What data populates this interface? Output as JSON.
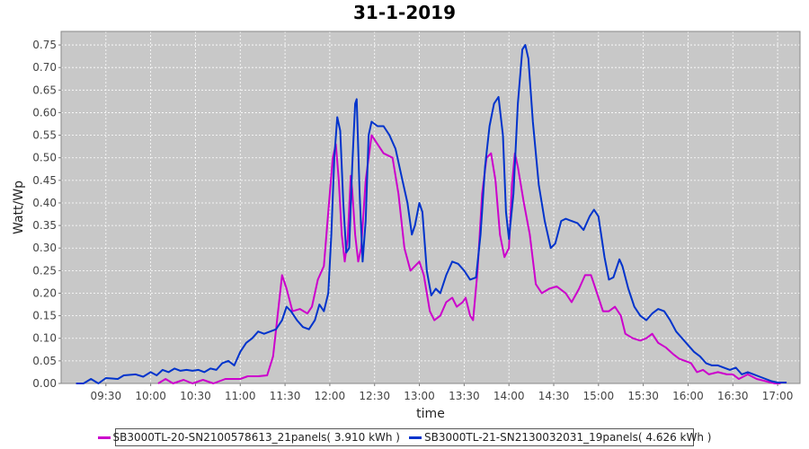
{
  "chart_data": {
    "type": "line",
    "title": "31-1-2019",
    "xlabel": "time",
    "ylabel": "Watt/Wp",
    "xlim": [
      "09:00",
      "17:15"
    ],
    "ylim": [
      0,
      0.78
    ],
    "x_ticks": [
      "09:30",
      "10:00",
      "10:30",
      "11:00",
      "11:30",
      "12:00",
      "12:30",
      "13:00",
      "13:30",
      "14:00",
      "14:30",
      "15:00",
      "15:30",
      "16:00",
      "16:30",
      "17:00"
    ],
    "y_ticks": [
      "0.00",
      "0.05",
      "0.10",
      "0.15",
      "0.20",
      "0.25",
      "0.30",
      "0.35",
      "0.40",
      "0.45",
      "0.50",
      "0.55",
      "0.60",
      "0.65",
      "0.70",
      "0.75"
    ],
    "grid": true,
    "legend_position": "bottom",
    "background": "#c8c8c8",
    "series": [
      {
        "name": "SB3000TL-20-SN2100578613_21panels( 3.910 kWh )",
        "color": "#cc00cc",
        "points": [
          [
            "10:05",
            0.0
          ],
          [
            "10:10",
            0.01
          ],
          [
            "10:15",
            0.0
          ],
          [
            "10:22",
            0.008
          ],
          [
            "10:28",
            0.0
          ],
          [
            "10:35",
            0.008
          ],
          [
            "10:42",
            0.0
          ],
          [
            "10:50",
            0.01
          ],
          [
            "11:00",
            0.01
          ],
          [
            "11:05",
            0.016
          ],
          [
            "11:12",
            0.016
          ],
          [
            "11:18",
            0.018
          ],
          [
            "11:22",
            0.06
          ],
          [
            "11:25",
            0.15
          ],
          [
            "11:28",
            0.24
          ],
          [
            "11:31",
            0.21
          ],
          [
            "11:35",
            0.16
          ],
          [
            "11:40",
            0.165
          ],
          [
            "11:45",
            0.155
          ],
          [
            "11:48",
            0.17
          ],
          [
            "11:52",
            0.23
          ],
          [
            "11:56",
            0.26
          ],
          [
            "11:59",
            0.38
          ],
          [
            "12:02",
            0.5
          ],
          [
            "12:04",
            0.53
          ],
          [
            "12:06",
            0.45
          ],
          [
            "12:08",
            0.33
          ],
          [
            "12:10",
            0.27
          ],
          [
            "12:12",
            0.32
          ],
          [
            "12:14",
            0.46
          ],
          [
            "12:15",
            0.43
          ],
          [
            "12:17",
            0.33
          ],
          [
            "12:19",
            0.27
          ],
          [
            "12:21",
            0.3
          ],
          [
            "12:24",
            0.45
          ],
          [
            "12:28",
            0.55
          ],
          [
            "12:32",
            0.53
          ],
          [
            "12:36",
            0.51
          ],
          [
            "12:42",
            0.5
          ],
          [
            "12:46",
            0.42
          ],
          [
            "12:50",
            0.3
          ],
          [
            "12:54",
            0.25
          ],
          [
            "12:57",
            0.26
          ],
          [
            "13:00",
            0.27
          ],
          [
            "13:03",
            0.24
          ],
          [
            "13:07",
            0.16
          ],
          [
            "13:10",
            0.14
          ],
          [
            "13:14",
            0.15
          ],
          [
            "13:18",
            0.18
          ],
          [
            "13:22",
            0.19
          ],
          [
            "13:25",
            0.17
          ],
          [
            "13:29",
            0.18
          ],
          [
            "13:31",
            0.19
          ],
          [
            "13:34",
            0.15
          ],
          [
            "13:36",
            0.14
          ],
          [
            "13:39",
            0.25
          ],
          [
            "13:42",
            0.42
          ],
          [
            "13:45",
            0.5
          ],
          [
            "13:48",
            0.51
          ],
          [
            "13:51",
            0.45
          ],
          [
            "13:54",
            0.33
          ],
          [
            "13:57",
            0.28
          ],
          [
            "14:00",
            0.3
          ],
          [
            "14:02",
            0.44
          ],
          [
            "14:04",
            0.51
          ],
          [
            "14:06",
            0.48
          ],
          [
            "14:10",
            0.4
          ],
          [
            "14:14",
            0.33
          ],
          [
            "14:18",
            0.22
          ],
          [
            "14:22",
            0.2
          ],
          [
            "14:27",
            0.21
          ],
          [
            "14:32",
            0.215
          ],
          [
            "14:38",
            0.2
          ],
          [
            "14:42",
            0.18
          ],
          [
            "14:47",
            0.21
          ],
          [
            "14:51",
            0.24
          ],
          [
            "14:55",
            0.24
          ],
          [
            "14:59",
            0.2
          ],
          [
            "15:03",
            0.16
          ],
          [
            "15:07",
            0.16
          ],
          [
            "15:11",
            0.17
          ],
          [
            "15:15",
            0.15
          ],
          [
            "15:18",
            0.11
          ],
          [
            "15:23",
            0.1
          ],
          [
            "15:28",
            0.095
          ],
          [
            "15:32",
            0.1
          ],
          [
            "15:36",
            0.11
          ],
          [
            "15:40",
            0.09
          ],
          [
            "15:45",
            0.08
          ],
          [
            "15:50",
            0.065
          ],
          [
            "15:54",
            0.055
          ],
          [
            "15:58",
            0.05
          ],
          [
            "16:02",
            0.045
          ],
          [
            "16:06",
            0.025
          ],
          [
            "16:10",
            0.03
          ],
          [
            "16:14",
            0.02
          ],
          [
            "16:20",
            0.025
          ],
          [
            "16:26",
            0.02
          ],
          [
            "16:30",
            0.02
          ],
          [
            "16:34",
            0.01
          ],
          [
            "16:40",
            0.02
          ],
          [
            "16:46",
            0.01
          ],
          [
            "16:52",
            0.005
          ],
          [
            "16:58",
            0.0
          ],
          [
            "17:02",
            0.0
          ]
        ]
      },
      {
        "name": "SB3000TL-21-SN2130032031_19panels( 4.626 kWh )",
        "color": "#0033cc",
        "points": [
          [
            "09:10",
            0.0
          ],
          [
            "09:15",
            0.0
          ],
          [
            "09:20",
            0.01
          ],
          [
            "09:25",
            0.0
          ],
          [
            "09:30",
            0.012
          ],
          [
            "09:38",
            0.01
          ],
          [
            "09:42",
            0.018
          ],
          [
            "09:50",
            0.02
          ],
          [
            "09:55",
            0.015
          ],
          [
            "10:00",
            0.025
          ],
          [
            "10:04",
            0.018
          ],
          [
            "10:08",
            0.03
          ],
          [
            "10:12",
            0.025
          ],
          [
            "10:16",
            0.033
          ],
          [
            "10:20",
            0.028
          ],
          [
            "10:24",
            0.03
          ],
          [
            "10:28",
            0.028
          ],
          [
            "10:32",
            0.03
          ],
          [
            "10:36",
            0.025
          ],
          [
            "10:40",
            0.033
          ],
          [
            "10:44",
            0.03
          ],
          [
            "10:48",
            0.045
          ],
          [
            "10:52",
            0.05
          ],
          [
            "10:56",
            0.04
          ],
          [
            "11:00",
            0.07
          ],
          [
            "11:04",
            0.09
          ],
          [
            "11:08",
            0.1
          ],
          [
            "11:12",
            0.115
          ],
          [
            "11:16",
            0.11
          ],
          [
            "11:20",
            0.115
          ],
          [
            "11:24",
            0.12
          ],
          [
            "11:28",
            0.14
          ],
          [
            "11:31",
            0.17
          ],
          [
            "11:34",
            0.16
          ],
          [
            "11:38",
            0.14
          ],
          [
            "11:42",
            0.125
          ],
          [
            "11:46",
            0.12
          ],
          [
            "11:50",
            0.14
          ],
          [
            "11:53",
            0.175
          ],
          [
            "11:56",
            0.16
          ],
          [
            "11:59",
            0.2
          ],
          [
            "12:01",
            0.33
          ],
          [
            "12:03",
            0.5
          ],
          [
            "12:05",
            0.59
          ],
          [
            "12:07",
            0.56
          ],
          [
            "12:09",
            0.4
          ],
          [
            "12:11",
            0.29
          ],
          [
            "12:13",
            0.3
          ],
          [
            "12:15",
            0.48
          ],
          [
            "12:17",
            0.62
          ],
          [
            "12:18",
            0.63
          ],
          [
            "12:20",
            0.42
          ],
          [
            "12:22",
            0.27
          ],
          [
            "12:24",
            0.36
          ],
          [
            "12:26",
            0.55
          ],
          [
            "12:28",
            0.58
          ],
          [
            "12:32",
            0.57
          ],
          [
            "12:36",
            0.57
          ],
          [
            "12:40",
            0.55
          ],
          [
            "12:44",
            0.52
          ],
          [
            "12:48",
            0.46
          ],
          [
            "12:52",
            0.4
          ],
          [
            "12:55",
            0.33
          ],
          [
            "12:57",
            0.35
          ],
          [
            "13:00",
            0.4
          ],
          [
            "13:02",
            0.38
          ],
          [
            "13:05",
            0.25
          ],
          [
            "13:08",
            0.195
          ],
          [
            "13:11",
            0.21
          ],
          [
            "13:14",
            0.2
          ],
          [
            "13:18",
            0.24
          ],
          [
            "13:22",
            0.27
          ],
          [
            "13:26",
            0.265
          ],
          [
            "13:30",
            0.25
          ],
          [
            "13:34",
            0.23
          ],
          [
            "13:38",
            0.235
          ],
          [
            "13:41",
            0.33
          ],
          [
            "13:44",
            0.48
          ],
          [
            "13:47",
            0.57
          ],
          [
            "13:50",
            0.62
          ],
          [
            "13:53",
            0.635
          ],
          [
            "13:56",
            0.55
          ],
          [
            "13:58",
            0.38
          ],
          [
            "14:00",
            0.32
          ],
          [
            "14:03",
            0.42
          ],
          [
            "14:06",
            0.62
          ],
          [
            "14:09",
            0.74
          ],
          [
            "14:11",
            0.75
          ],
          [
            "14:13",
            0.72
          ],
          [
            "14:16",
            0.58
          ],
          [
            "14:20",
            0.44
          ],
          [
            "14:24",
            0.36
          ],
          [
            "14:28",
            0.3
          ],
          [
            "14:31",
            0.31
          ],
          [
            "14:35",
            0.36
          ],
          [
            "14:38",
            0.365
          ],
          [
            "14:42",
            0.36
          ],
          [
            "14:46",
            0.355
          ],
          [
            "14:50",
            0.34
          ],
          [
            "14:54",
            0.37
          ],
          [
            "14:57",
            0.385
          ],
          [
            "15:00",
            0.37
          ],
          [
            "15:04",
            0.28
          ],
          [
            "15:07",
            0.23
          ],
          [
            "15:10",
            0.235
          ],
          [
            "15:14",
            0.275
          ],
          [
            "15:16",
            0.26
          ],
          [
            "15:20",
            0.21
          ],
          [
            "15:24",
            0.17
          ],
          [
            "15:28",
            0.15
          ],
          [
            "15:32",
            0.14
          ],
          [
            "15:36",
            0.155
          ],
          [
            "15:40",
            0.165
          ],
          [
            "15:44",
            0.16
          ],
          [
            "15:48",
            0.14
          ],
          [
            "15:52",
            0.115
          ],
          [
            "15:56",
            0.1
          ],
          [
            "16:00",
            0.085
          ],
          [
            "16:04",
            0.07
          ],
          [
            "16:08",
            0.06
          ],
          [
            "16:12",
            0.045
          ],
          [
            "16:16",
            0.04
          ],
          [
            "16:20",
            0.04
          ],
          [
            "16:24",
            0.035
          ],
          [
            "16:28",
            0.03
          ],
          [
            "16:32",
            0.035
          ],
          [
            "16:36",
            0.02
          ],
          [
            "16:40",
            0.025
          ],
          [
            "16:44",
            0.02
          ],
          [
            "16:48",
            0.015
          ],
          [
            "16:52",
            0.01
          ],
          [
            "16:56",
            0.005
          ],
          [
            "17:00",
            0.002
          ],
          [
            "17:06",
            0.002
          ]
        ]
      }
    ]
  }
}
